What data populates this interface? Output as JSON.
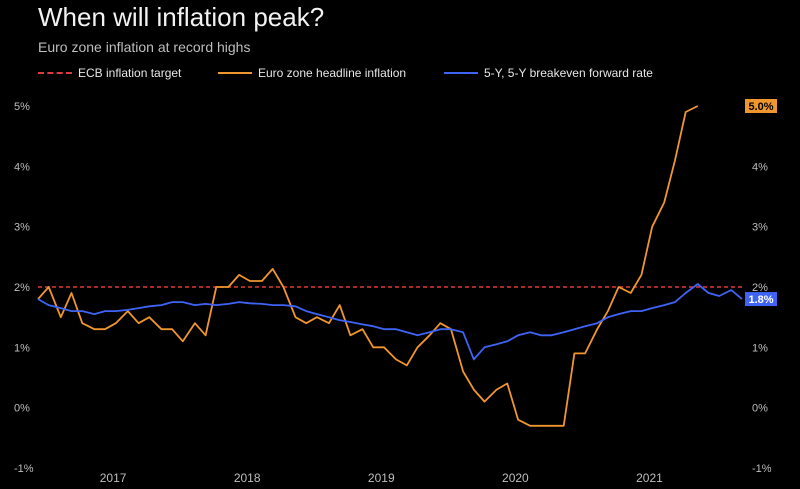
{
  "chart_data": {
    "type": "line",
    "title": "When will inflation peak?",
    "subtitle": "Euro zone inflation at record highs",
    "xlabel": "",
    "ylabel": "",
    "ylim": [
      -1,
      5.5
    ],
    "xlim": [
      2016.5,
      2021.75
    ],
    "y_ticks": [
      "5%",
      "4%",
      "3%",
      "2%",
      "1%",
      "0%",
      "-1%"
    ],
    "y_tick_values": [
      5,
      4,
      3,
      2,
      1,
      0,
      -1
    ],
    "x_ticks": [
      "2017",
      "2018",
      "2019",
      "2020",
      "2021"
    ],
    "x_tick_values": [
      2017,
      2018,
      2019,
      2020,
      2021
    ],
    "colors": {
      "target": "#e03a3a",
      "headline": "#f0962e",
      "breakeven": "#3f64f5",
      "grid": "#2a2a2a"
    },
    "series": [
      {
        "name": "ECB inflation target",
        "x": [
          2016.5,
          2021.75
        ],
        "y": [
          2.0,
          2.0
        ]
      },
      {
        "name": "Euro zone headline inflation",
        "x": [
          2016.5,
          2016.58,
          2016.67,
          2016.75,
          2016.83,
          2016.92,
          2017.0,
          2017.08,
          2017.17,
          2017.25,
          2017.33,
          2017.42,
          2017.5,
          2017.58,
          2017.67,
          2017.75,
          2017.83,
          2017.92,
          2018.0,
          2018.08,
          2018.17,
          2018.25,
          2018.33,
          2018.42,
          2018.5,
          2018.58,
          2018.67,
          2018.75,
          2018.83,
          2018.92,
          2019.0,
          2019.08,
          2019.17,
          2019.25,
          2019.33,
          2019.42,
          2019.5,
          2019.58,
          2019.67,
          2019.75,
          2019.83,
          2019.92,
          2020.0,
          2020.08,
          2020.17,
          2020.25,
          2020.33,
          2020.42,
          2020.5,
          2020.58,
          2020.67,
          2020.75,
          2020.83,
          2020.92,
          2021.0,
          2021.08,
          2021.17,
          2021.25,
          2021.33,
          2021.42
        ],
        "y": [
          1.8,
          2.0,
          1.5,
          1.9,
          1.4,
          1.3,
          1.3,
          1.4,
          1.6,
          1.4,
          1.5,
          1.3,
          1.3,
          1.1,
          1.4,
          1.2,
          2.0,
          2.0,
          2.2,
          2.1,
          2.1,
          2.3,
          2.0,
          1.5,
          1.4,
          1.5,
          1.4,
          1.7,
          1.2,
          1.3,
          1.0,
          1.0,
          0.8,
          0.7,
          1.0,
          1.2,
          1.4,
          1.3,
          0.6,
          0.3,
          0.1,
          0.3,
          0.4,
          -0.2,
          -0.3,
          -0.3,
          -0.3,
          -0.3,
          0.9,
          0.9,
          1.3,
          1.6,
          2.0,
          1.9,
          2.2,
          3.0,
          3.4,
          4.1,
          4.9,
          5.0
        ]
      },
      {
        "name": "5-Y, 5-Y breakeven forward rate",
        "x": [
          2016.5,
          2016.58,
          2016.67,
          2016.75,
          2016.83,
          2016.92,
          2017.0,
          2017.08,
          2017.17,
          2017.25,
          2017.33,
          2017.42,
          2017.5,
          2017.58,
          2017.67,
          2017.75,
          2017.83,
          2017.92,
          2018.0,
          2018.08,
          2018.17,
          2018.25,
          2018.33,
          2018.42,
          2018.5,
          2018.58,
          2018.67,
          2018.75,
          2018.83,
          2018.92,
          2019.0,
          2019.08,
          2019.17,
          2019.25,
          2019.33,
          2019.42,
          2019.5,
          2019.58,
          2019.67,
          2019.75,
          2019.83,
          2019.92,
          2020.0,
          2020.08,
          2020.17,
          2020.25,
          2020.33,
          2020.42,
          2020.5,
          2020.58,
          2020.67,
          2020.75,
          2020.83,
          2020.92,
          2021.0,
          2021.08,
          2021.17,
          2021.25,
          2021.33,
          2021.42,
          2021.5,
          2021.58,
          2021.67,
          2021.75
        ],
        "y": [
          1.8,
          1.7,
          1.65,
          1.6,
          1.6,
          1.55,
          1.6,
          1.6,
          1.62,
          1.65,
          1.68,
          1.7,
          1.75,
          1.75,
          1.7,
          1.72,
          1.7,
          1.72,
          1.75,
          1.73,
          1.72,
          1.7,
          1.7,
          1.68,
          1.6,
          1.55,
          1.5,
          1.45,
          1.42,
          1.38,
          1.35,
          1.3,
          1.3,
          1.25,
          1.2,
          1.25,
          1.3,
          1.3,
          1.25,
          0.8,
          1.0,
          1.05,
          1.1,
          1.2,
          1.25,
          1.2,
          1.2,
          1.25,
          1.3,
          1.35,
          1.4,
          1.5,
          1.55,
          1.6,
          1.6,
          1.65,
          1.7,
          1.75,
          1.9,
          2.05,
          1.9,
          1.85,
          1.95,
          1.8
        ]
      }
    ],
    "end_labels": [
      {
        "series": "Euro zone headline inflation",
        "text": "5.0%",
        "value": 5.0
      },
      {
        "series": "5-Y, 5-Y breakeven forward rate",
        "text": "1.8%",
        "value": 1.8
      }
    ]
  }
}
